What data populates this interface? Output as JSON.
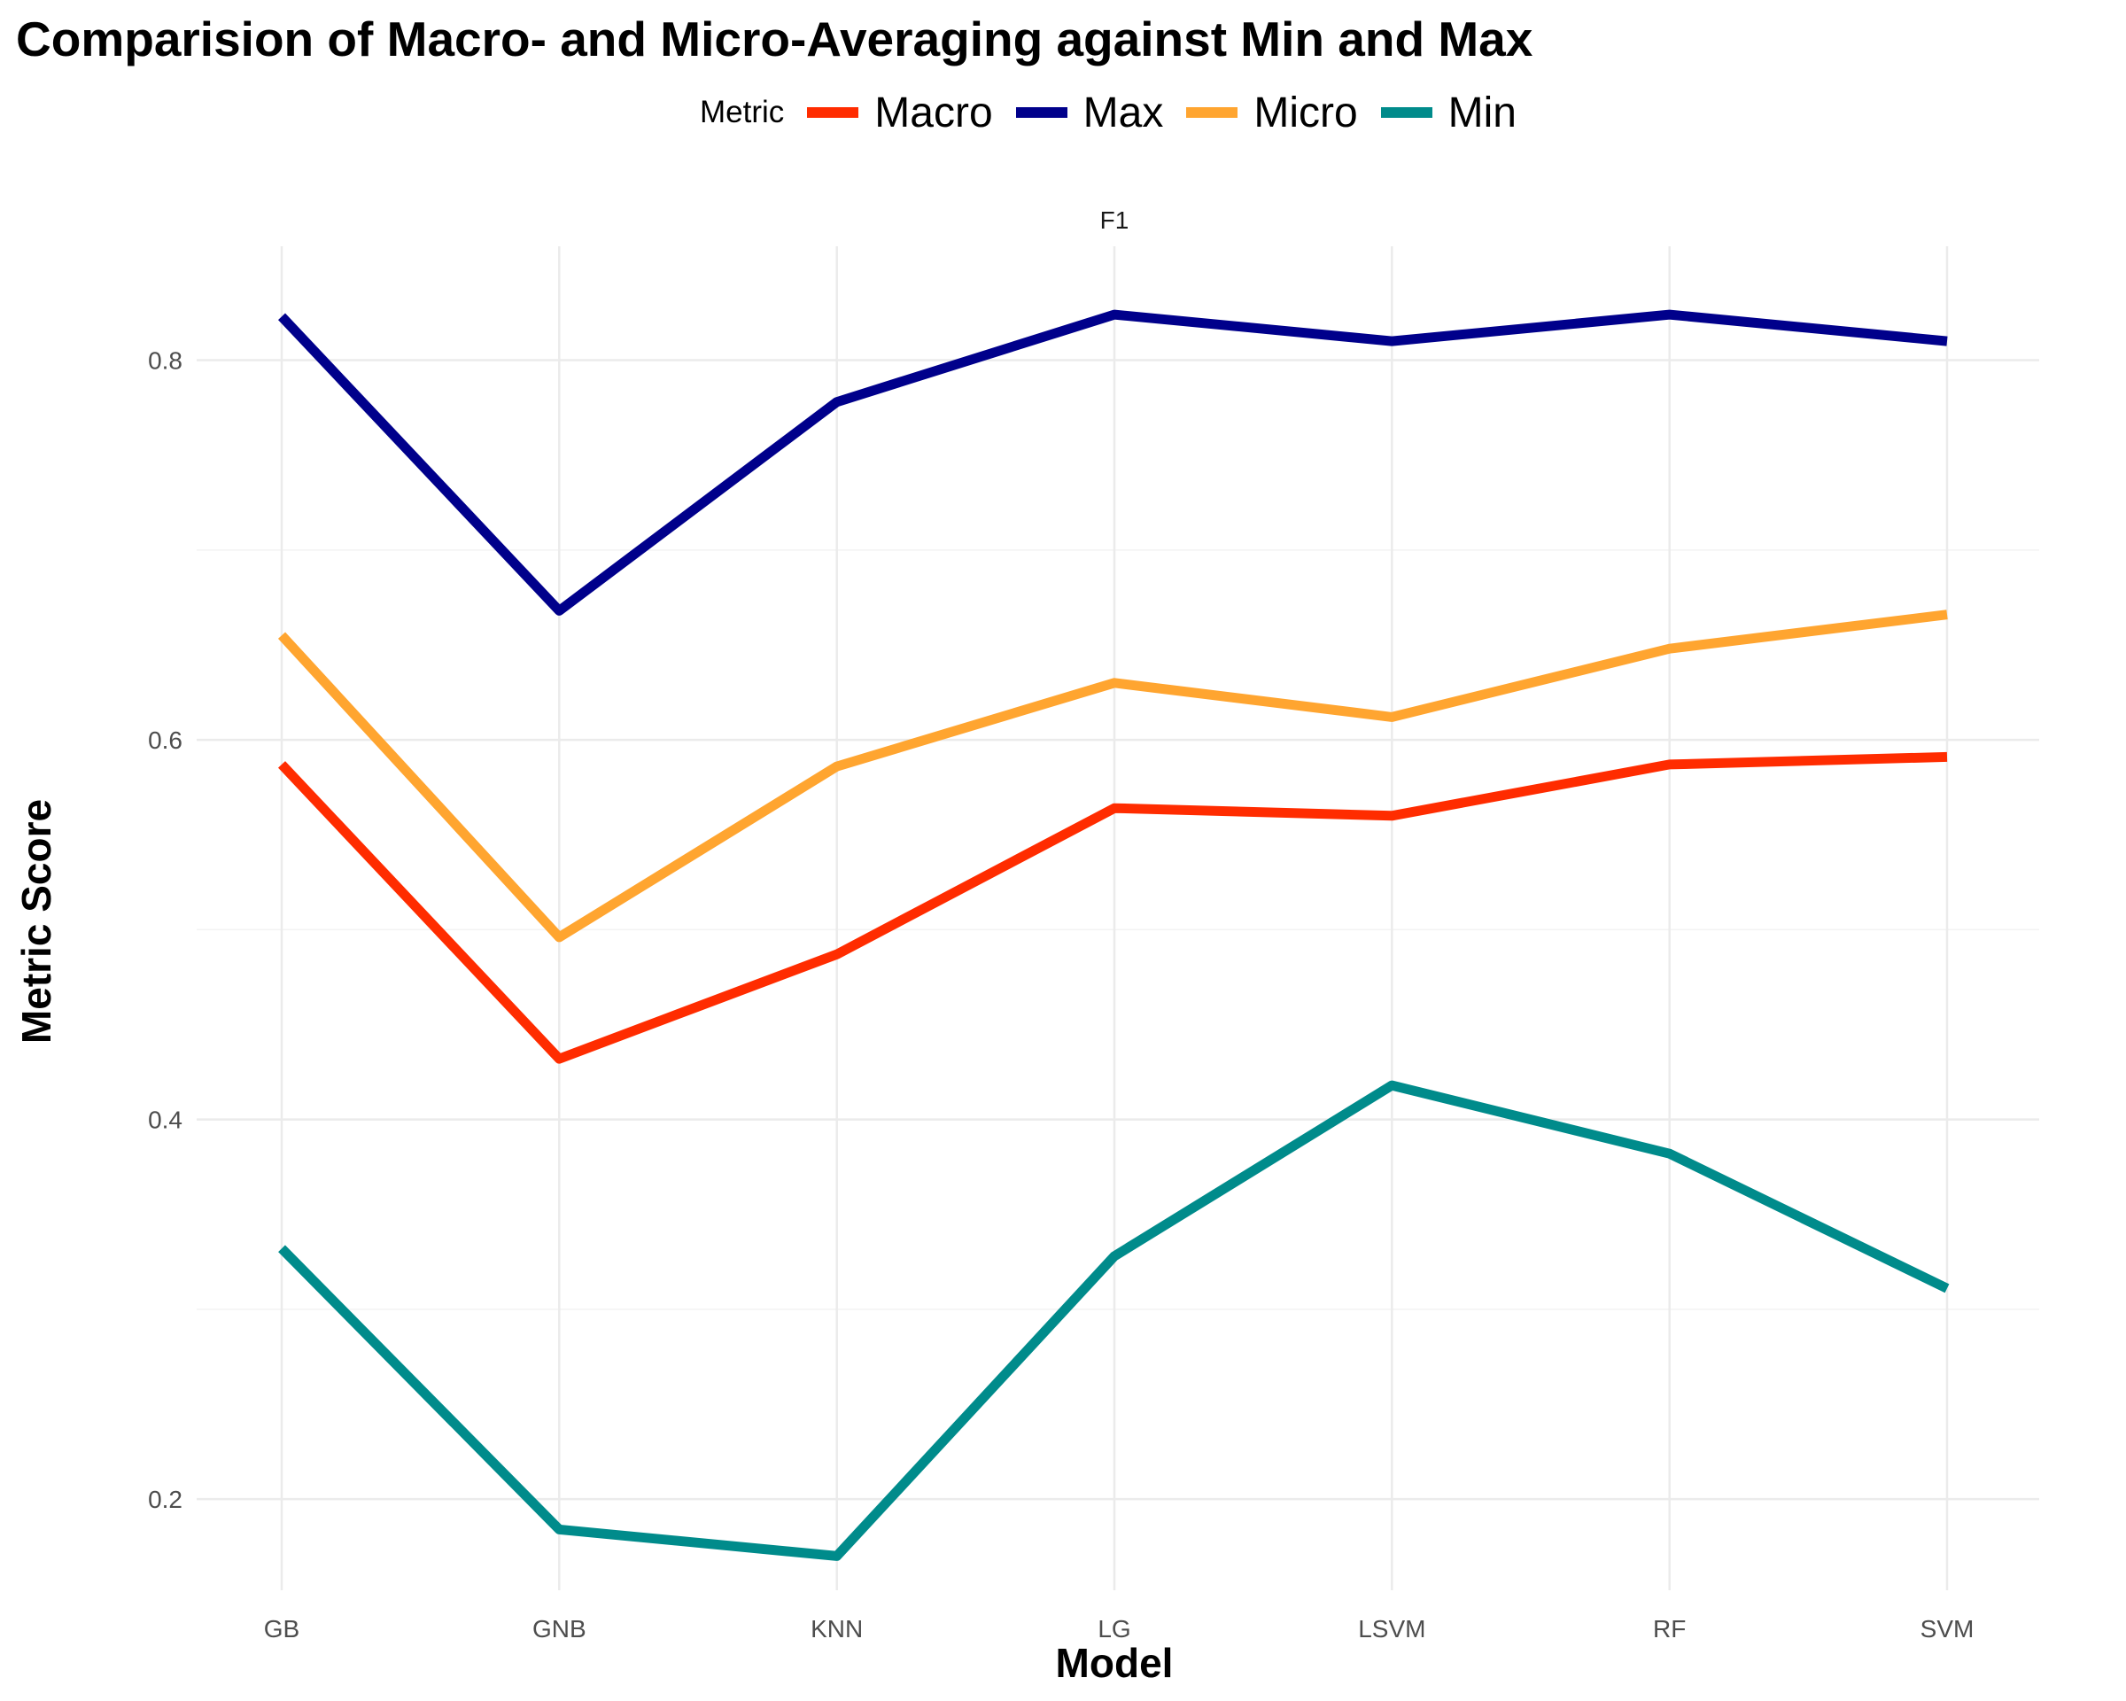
{
  "chart_data": {
    "type": "line",
    "title": "Comparision of Macro- and Micro-Averaging against Min and Max",
    "facet": "F1",
    "xlabel": "Model",
    "ylabel": "Metric Score",
    "categories": [
      "GB",
      "GNB",
      "KNN",
      "LG",
      "LSVM",
      "RF",
      "SVM"
    ],
    "yticks": [
      0.2,
      0.4,
      0.6,
      0.8
    ],
    "ytick_labels": [
      "0.2",
      "0.4",
      "0.6",
      "0.8"
    ],
    "ylim": [
      0.152,
      0.86
    ],
    "grid": true,
    "legend": {
      "title": "Metric",
      "position": "top"
    },
    "series": [
      {
        "name": "Macro",
        "color": "#ff2c00",
        "values": [
          0.587,
          0.432,
          0.487,
          0.564,
          0.56,
          0.587,
          0.591
        ]
      },
      {
        "name": "Max",
        "color": "#00008b",
        "values": [
          0.823,
          0.668,
          0.778,
          0.824,
          0.81,
          0.824,
          0.81
        ]
      },
      {
        "name": "Micro",
        "color": "#ffa530",
        "values": [
          0.655,
          0.496,
          0.586,
          0.63,
          0.612,
          0.648,
          0.666
        ]
      },
      {
        "name": "Min",
        "color": "#008b8b",
        "values": [
          0.332,
          0.184,
          0.17,
          0.328,
          0.418,
          0.382,
          0.311
        ]
      }
    ]
  }
}
